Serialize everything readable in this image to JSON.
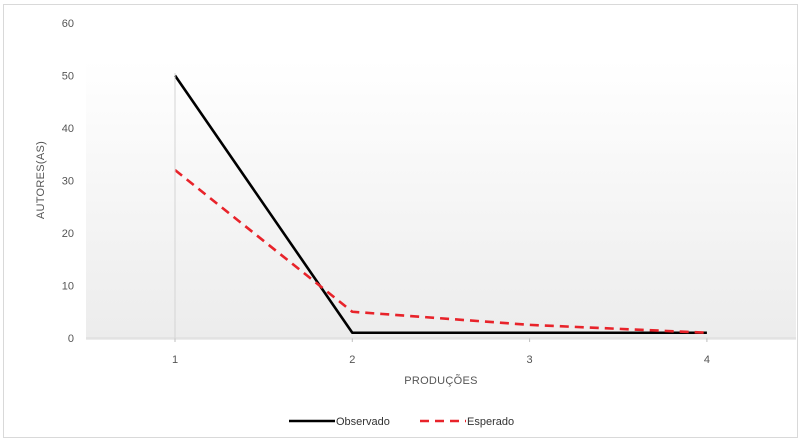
{
  "chart_data": {
    "type": "line",
    "title": "",
    "xlabel": "PRODUÇÕES",
    "ylabel": "AUTORES(AS)",
    "categories": [
      "1",
      "2",
      "3",
      "4"
    ],
    "ylim": [
      0,
      60
    ],
    "yticks": [
      "0",
      "10",
      "20",
      "30",
      "40",
      "50",
      "60"
    ],
    "series": [
      {
        "name": "Observado",
        "values": [
          50,
          1,
          1,
          1
        ],
        "color": "#000000",
        "style": "solid"
      },
      {
        "name": "Esperado",
        "values": [
          32,
          5,
          2.5,
          1
        ],
        "color": "#e8232a",
        "style": "dashed"
      }
    ],
    "legend_position": "bottom-center",
    "grid": false,
    "plot_background": "gradient-gray"
  }
}
